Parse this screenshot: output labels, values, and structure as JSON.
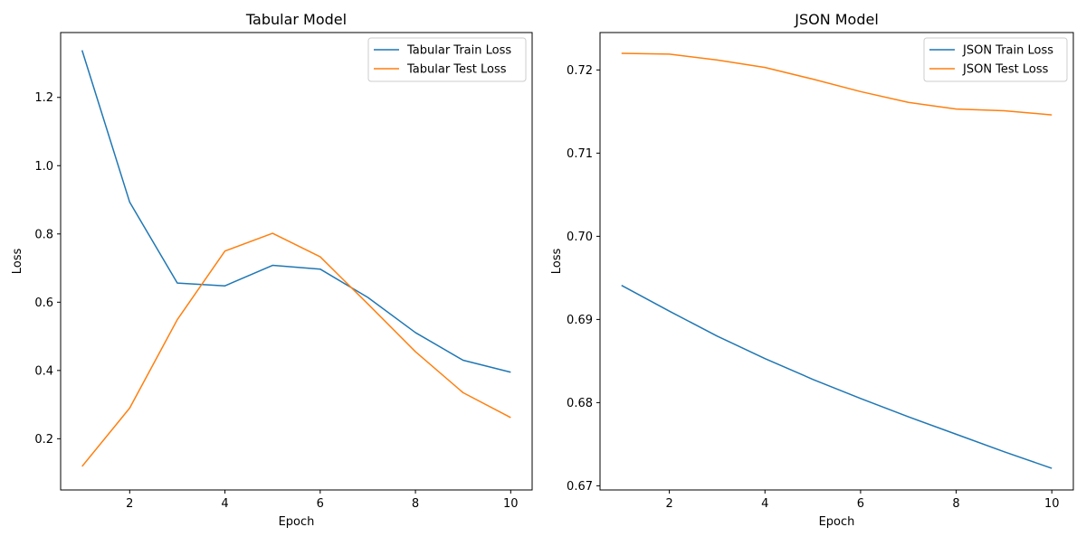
{
  "chart_data": [
    {
      "type": "line",
      "title": "Tabular Model",
      "xlabel": "Epoch",
      "ylabel": "Loss",
      "x": [
        1,
        2,
        3,
        4,
        5,
        6,
        7,
        8,
        9,
        10
      ],
      "xlim": [
        0.55,
        10.45
      ],
      "ylim": [
        0.05,
        1.39
      ],
      "xticks": [
        2,
        4,
        6,
        8,
        10
      ],
      "xtick_labels": [
        "2",
        "4",
        "6",
        "8",
        "10"
      ],
      "yticks": [
        0.2,
        0.4,
        0.6,
        0.8,
        1.0,
        1.2
      ],
      "ytick_labels": [
        "0.2",
        "0.4",
        "0.6",
        "0.8",
        "1.0",
        "1.2"
      ],
      "legend_position": "top-right",
      "grid": false,
      "series": [
        {
          "name": "Tabular Train Loss",
          "color": "#1f77b4",
          "values": [
            1.338,
            0.893,
            0.656,
            0.648,
            0.708,
            0.697,
            0.614,
            0.511,
            0.43,
            0.395
          ]
        },
        {
          "name": "Tabular Test Loss",
          "color": "#ff7f0e",
          "values": [
            0.119,
            0.29,
            0.549,
            0.75,
            0.802,
            0.733,
            0.595,
            0.455,
            0.335,
            0.262
          ]
        }
      ]
    },
    {
      "type": "line",
      "title": "JSON Model",
      "xlabel": "Epoch",
      "ylabel": "Loss",
      "x": [
        1,
        2,
        3,
        4,
        5,
        6,
        7,
        8,
        9,
        10
      ],
      "xlim": [
        0.55,
        10.45
      ],
      "ylim": [
        0.6695,
        0.7245
      ],
      "xticks": [
        2,
        4,
        6,
        8,
        10
      ],
      "xtick_labels": [
        "2",
        "4",
        "6",
        "8",
        "10"
      ],
      "yticks": [
        0.67,
        0.68,
        0.69,
        0.7,
        0.71,
        0.72
      ],
      "ytick_labels": [
        "0.67",
        "0.68",
        "0.69",
        "0.70",
        "0.71",
        "0.72"
      ],
      "legend_position": "top-right",
      "grid": false,
      "series": [
        {
          "name": "JSON Train Loss",
          "color": "#1f77b4",
          "values": [
            0.6941,
            0.691,
            0.688,
            0.6853,
            0.6828,
            0.6805,
            0.6783,
            0.6762,
            0.6741,
            0.6721
          ]
        },
        {
          "name": "JSON Test Loss",
          "color": "#ff7f0e",
          "values": [
            0.722,
            0.7219,
            0.7212,
            0.7203,
            0.7189,
            0.7174,
            0.7161,
            0.7153,
            0.7151,
            0.7146
          ]
        }
      ]
    }
  ]
}
